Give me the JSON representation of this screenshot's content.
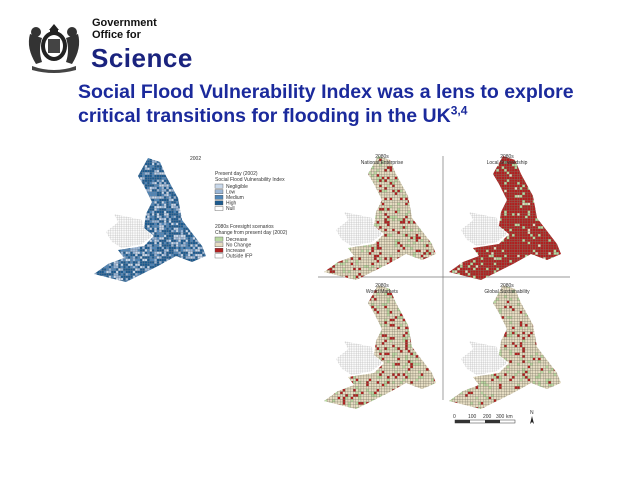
{
  "header": {
    "org_line1": "Government",
    "org_line2": "Office for",
    "org_name": "Science"
  },
  "slide": {
    "title": "Social Flood Vulnerability Index was a lens to explore critical transitions for flooding in the UK",
    "title_superscript": "3,4"
  },
  "map_2002": {
    "year_label": "2002",
    "legend1": {
      "heading1": "Present day (2002)",
      "heading2": "Social Flood Vulnerability Index",
      "items": [
        {
          "label": "Negligible",
          "color": "#c9d8ea"
        },
        {
          "label": "Low",
          "color": "#9ab6d6"
        },
        {
          "label": "Medium",
          "color": "#4f86b8"
        },
        {
          "label": "High",
          "color": "#1c5a8e"
        },
        {
          "label": "Null",
          "color": "#ffffff"
        }
      ]
    },
    "legend2": {
      "heading1": "2080s Foresight scenarios",
      "heading2": "Change from present day (2002)",
      "items": [
        {
          "label": "Decrease",
          "color": "#b8d7a0"
        },
        {
          "label": "No Change",
          "color": "#e5dcc2"
        },
        {
          "label": "Increase",
          "color": "#b02020"
        },
        {
          "label": "Outside IFP",
          "color": "#ffffff"
        }
      ]
    }
  },
  "scenarios": [
    {
      "line1": "2080s",
      "line2": "National Enterprise",
      "red_share": 0.12
    },
    {
      "line1": "2080s",
      "line2": "Local Stewardship",
      "red_share": 0.85
    },
    {
      "line1": "2080s",
      "line2": "World Markets",
      "red_share": 0.15
    },
    {
      "line1": "2080s",
      "line2": "Global Sustainability",
      "red_share": 0.08
    }
  ],
  "scalebar": {
    "ticks": [
      "0",
      "100",
      "200",
      "300"
    ],
    "unit": "km",
    "north": "N"
  },
  "colors": {
    "title": "#1b2a9c",
    "logo_blue": "#1a237e",
    "null_grid": "#b0b0b0"
  }
}
